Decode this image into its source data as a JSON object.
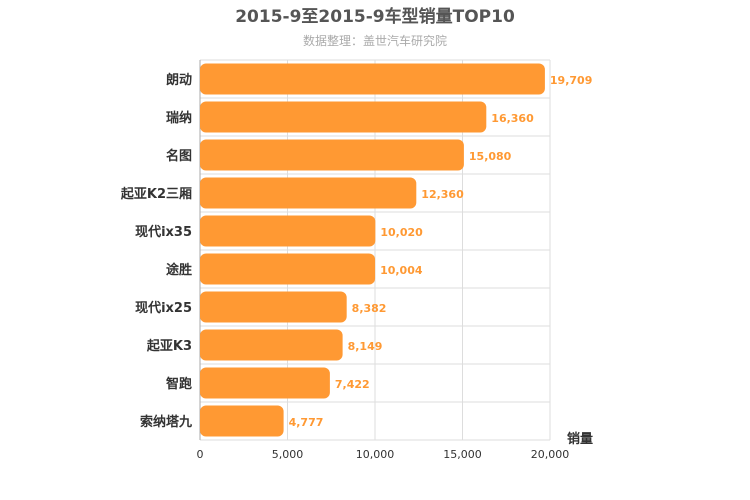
{
  "chart_data": {
    "type": "bar",
    "orientation": "horizontal",
    "title": "2015-9至2015-9车型销量TOP10",
    "subtitle": "数据整理：盖世汽车研究院",
    "xlabel": "销量",
    "ylabel": "",
    "categories": [
      "朗动",
      "瑞纳",
      "名图",
      "起亚K2三厢",
      "现代ix35",
      "途胜",
      "现代ix25",
      "起亚K3",
      "智跑",
      "索纳塔九"
    ],
    "values": [
      19709,
      16360,
      15080,
      12360,
      10020,
      10004,
      8382,
      8149,
      7422,
      4777
    ],
    "value_labels": [
      "19,709",
      "16,360",
      "15,080",
      "12,360",
      "10,020",
      "10,004",
      "8,382",
      "8,149",
      "7,422",
      "4,777"
    ],
    "xlim": [
      0,
      20000
    ],
    "ticks": [
      0,
      5000,
      10000,
      15000,
      20000
    ],
    "tick_labels": [
      "0",
      "5,000",
      "10,000",
      "15,000",
      "20,000"
    ],
    "grid": true,
    "legend": false,
    "bar_color": "#ff9933",
    "label_color": "#ff9933"
  }
}
